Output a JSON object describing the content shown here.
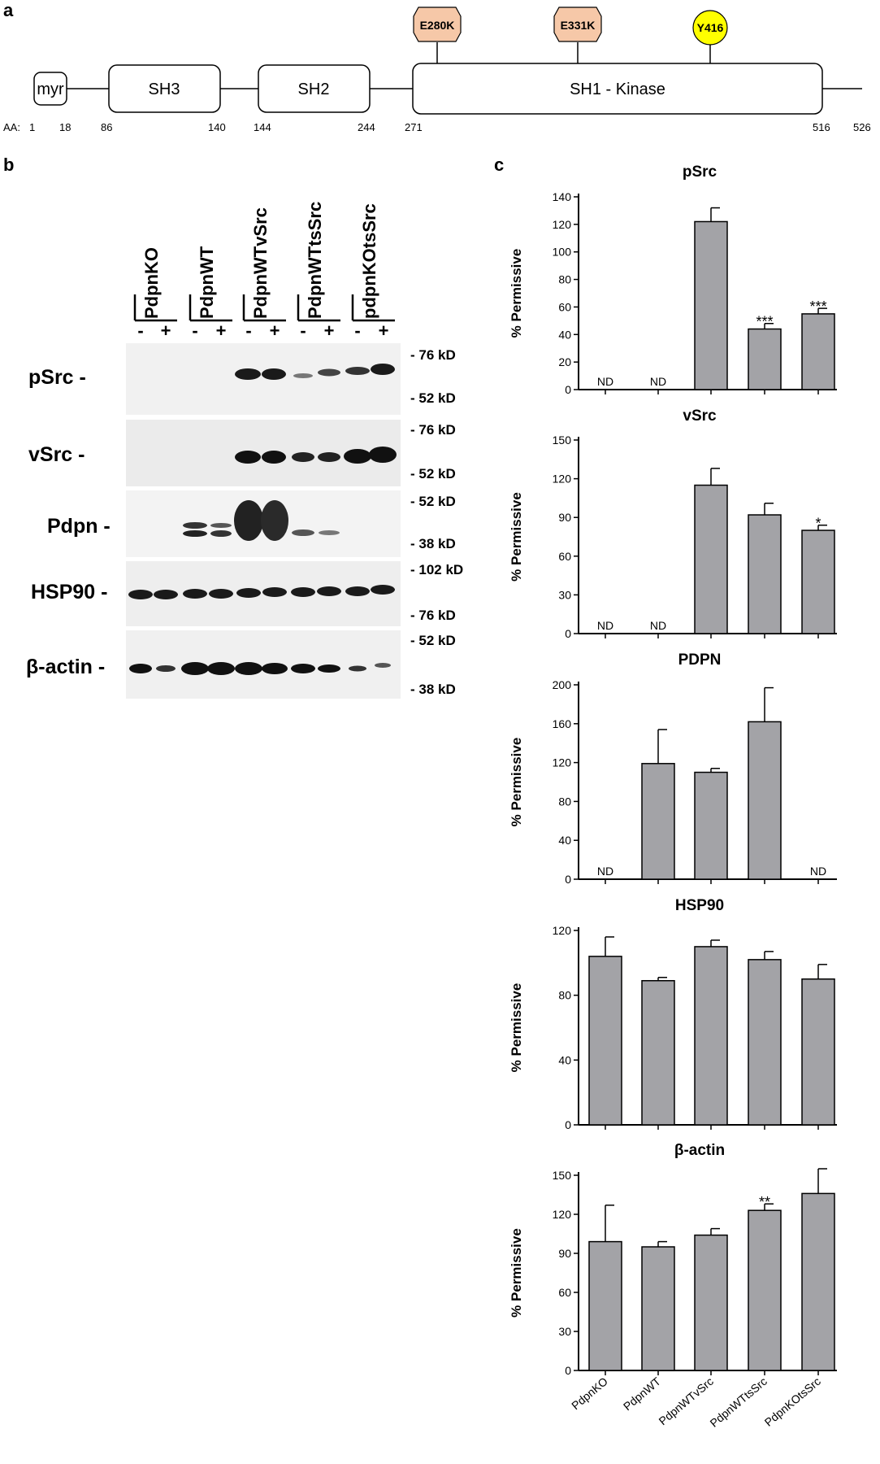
{
  "panel_a": {
    "letter": "a",
    "aa_prefix": "AA:",
    "domains": [
      {
        "label": "myr"
      },
      {
        "label": "SH3"
      },
      {
        "label": "SH2"
      },
      {
        "label": "SH1 - Kinase"
      }
    ],
    "aa_positions": [
      "1",
      "18",
      "86",
      "140",
      "144",
      "244",
      "271",
      "516",
      "526"
    ],
    "mutations": [
      {
        "label": "E280K",
        "color": "#f6c8a8"
      },
      {
        "label": "E331K",
        "color": "#f6c8a8"
      },
      {
        "label": "Y416",
        "color": "#ffff00"
      }
    ]
  },
  "panel_b": {
    "letter": "b",
    "lanes": [
      "PdpnKO",
      "PdpnWT",
      "PdpnWTvSrc",
      "PdpnWTtsSrc",
      "pdpnKOtsSrc"
    ],
    "signs": [
      "-",
      "+"
    ],
    "blots": [
      {
        "protein": "pSrc -",
        "markers": [
          "- 76 kD",
          "- 52 kD"
        ]
      },
      {
        "protein": "vSrc -",
        "markers": [
          "- 76 kD",
          "- 52 kD"
        ]
      },
      {
        "protein": "Pdpn -",
        "markers": [
          "- 52 kD",
          "- 38 kD"
        ]
      },
      {
        "protein": "HSP90 -",
        "markers": [
          "- 102 kD",
          "- 76 kD"
        ]
      },
      {
        "protein": "β-actin -",
        "markers": [
          "- 52 kD",
          "- 38 kD"
        ]
      }
    ]
  },
  "panel_c": {
    "letter": "c",
    "ylabel": "% Permissive",
    "categories": [
      "PdpnKO",
      "PdpnWT",
      "PdpnWTvSrc",
      "PdpnWTtsSrc",
      "PdpnKOtsSrc"
    ]
  },
  "chart_data": [
    {
      "type": "bar",
      "title": "pSrc",
      "ylabel": "% Permissive",
      "categories": [
        "PdpnKO",
        "PdpnWT",
        "PdpnWTvSrc",
        "PdpnWTtsSrc",
        "PdpnKOtsSrc"
      ],
      "values": [
        null,
        null,
        122,
        44,
        55
      ],
      "errors": [
        null,
        null,
        10,
        4,
        4
      ],
      "labels": [
        "ND",
        "ND",
        "",
        "***",
        "***"
      ],
      "ylim": [
        0,
        140
      ],
      "yticks": [
        0,
        20,
        40,
        60,
        80,
        100,
        120,
        140
      ]
    },
    {
      "type": "bar",
      "title": "vSrc",
      "ylabel": "% Permissive",
      "categories": [
        "PdpnKO",
        "PdpnWT",
        "PdpnWTvSrc",
        "PdpnWTtsSrc",
        "PdpnKOtsSrc"
      ],
      "values": [
        null,
        null,
        115,
        92,
        80
      ],
      "errors": [
        null,
        null,
        13,
        9,
        4
      ],
      "labels": [
        "ND",
        "ND",
        "",
        "",
        "*"
      ],
      "ylim": [
        0,
        150
      ],
      "yticks": [
        0,
        30,
        60,
        90,
        120,
        150
      ]
    },
    {
      "type": "bar",
      "title": "PDPN",
      "ylabel": "% Permissive",
      "categories": [
        "PdpnKO",
        "PdpnWT",
        "PdpnWTvSrc",
        "PdpnWTtsSrc",
        "PdpnKOtsSrc"
      ],
      "values": [
        null,
        119,
        110,
        162,
        null
      ],
      "errors": [
        null,
        35,
        4,
        35,
        null
      ],
      "labels": [
        "ND",
        "",
        "",
        "",
        "ND"
      ],
      "ylim": [
        0,
        200
      ],
      "yticks": [
        0,
        40,
        80,
        120,
        160,
        200
      ]
    },
    {
      "type": "bar",
      "title": "HSP90",
      "ylabel": "% Permissive",
      "categories": [
        "PdpnKO",
        "PdpnWT",
        "PdpnWTvSrc",
        "PdpnWTtsSrc",
        "PdpnKOtsSrc"
      ],
      "values": [
        104,
        89,
        110,
        102,
        90
      ],
      "errors": [
        12,
        2,
        4,
        5,
        9
      ],
      "labels": [
        "",
        "",
        "",
        "",
        ""
      ],
      "ylim": [
        0,
        120
      ],
      "yticks": [
        0,
        40,
        80,
        120
      ]
    },
    {
      "type": "bar",
      "title": "β-actin",
      "ylabel": "% Permissive",
      "categories": [
        "PdpnKO",
        "PdpnWT",
        "PdpnWTvSrc",
        "PdpnWTtsSrc",
        "PdpnKOtsSrc"
      ],
      "values": [
        99,
        95,
        104,
        123,
        136
      ],
      "errors": [
        28,
        4,
        5,
        5,
        19
      ],
      "labels": [
        "",
        "",
        "",
        "**",
        ""
      ],
      "ylim": [
        0,
        160
      ],
      "yticks": [
        0,
        30,
        60,
        90,
        120,
        150
      ]
    }
  ]
}
